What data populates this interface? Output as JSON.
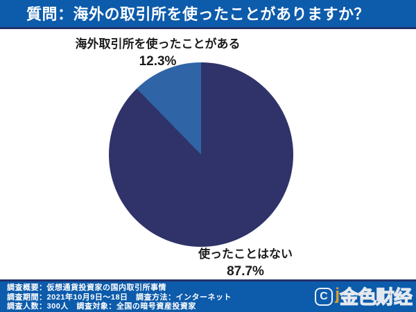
{
  "header": {
    "title": "質問：海外の取引所を使ったことがありますか？"
  },
  "chart_data": {
    "type": "pie",
    "title": "質問：海外の取引所を使ったことがありますか？",
    "slices": [
      {
        "label": "海外取引所を使ったことがある",
        "value": 12.3,
        "display": "12.3%",
        "color": "#2F64A6"
      },
      {
        "label": "使ったことはない",
        "value": 87.7,
        "display": "87.7%",
        "color": "#303369"
      }
    ],
    "start_angle_deg": 0,
    "small_slice_position": "counterclockwise-from-top",
    "legend_position": "none",
    "labels_as_callouts": true
  },
  "footer": {
    "lines": [
      "調査概要：仮想通貨投資家の国内取引所事情",
      "調査期間：2021年10月9日～18日　調査方法：インターネット",
      "調査人数：300人　調査対象：全国の暗号資産投資家"
    ]
  },
  "logo": {
    "icon_text": "C",
    "accent_text": "j",
    "text": "金色财经"
  },
  "theme": {
    "banner-blue": "#0D5BAB",
    "banner-border": "#23306B",
    "pie-dark": "#303369",
    "pie-light": "#2F64A6",
    "logo-orange": "#F5A623"
  }
}
